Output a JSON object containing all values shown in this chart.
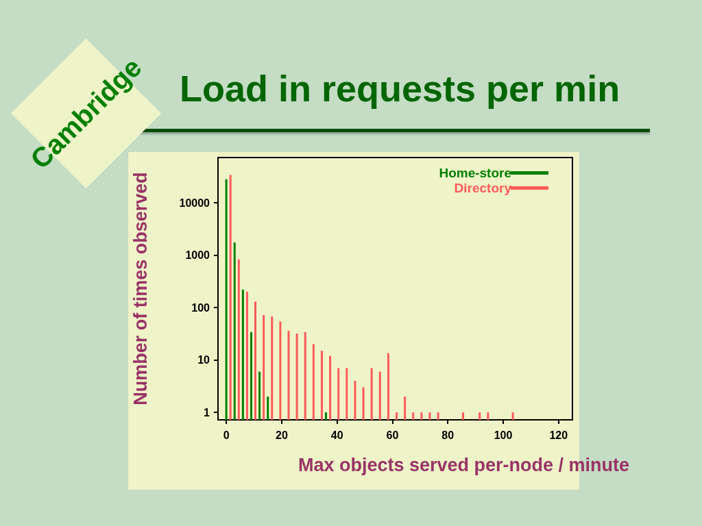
{
  "chart_data": {
    "type": "bar",
    "title": "Load in requests per min",
    "xlabel": "Max objects served per-node / minute",
    "ylabel": "Number of times observed",
    "annotations": [
      "Cambridge"
    ],
    "log": "y",
    "legend": "top right",
    "xlim": [
      -3,
      125
    ],
    "xticks": [
      0,
      20,
      40,
      60,
      80,
      100,
      120
    ],
    "ylim": [
      0.72,
      73000
    ],
    "yticks": [
      1,
      10,
      100,
      1000,
      10000
    ],
    "series": [
      {
        "name": "Home-store",
        "color": "#008000",
        "x": [
          0,
          3,
          6,
          9,
          12,
          15,
          36
        ],
        "values": [
          28000,
          1750,
          220,
          34,
          6,
          2,
          1
        ]
      },
      {
        "name": "Directory",
        "color": "#ff5a5a",
        "x": [
          1.5,
          4.5,
          7.5,
          10.5,
          13.5,
          16.5,
          19.5,
          22.5,
          25.5,
          28.5,
          31.5,
          34.5,
          37.5,
          40.5,
          43.5,
          46.5,
          49.5,
          52.5,
          55.5,
          58.5,
          61.5,
          64.5,
          67.5,
          70.5,
          73.5,
          76.5,
          85.5,
          91.5,
          94.5,
          103.5
        ],
        "values": [
          34000,
          830,
          200,
          130,
          72,
          68,
          54,
          36,
          32,
          34,
          20,
          15,
          12,
          7,
          7,
          4,
          3,
          7,
          6,
          13.5,
          1,
          2,
          1,
          1,
          1,
          1,
          1,
          1,
          1,
          1
        ]
      }
    ]
  }
}
